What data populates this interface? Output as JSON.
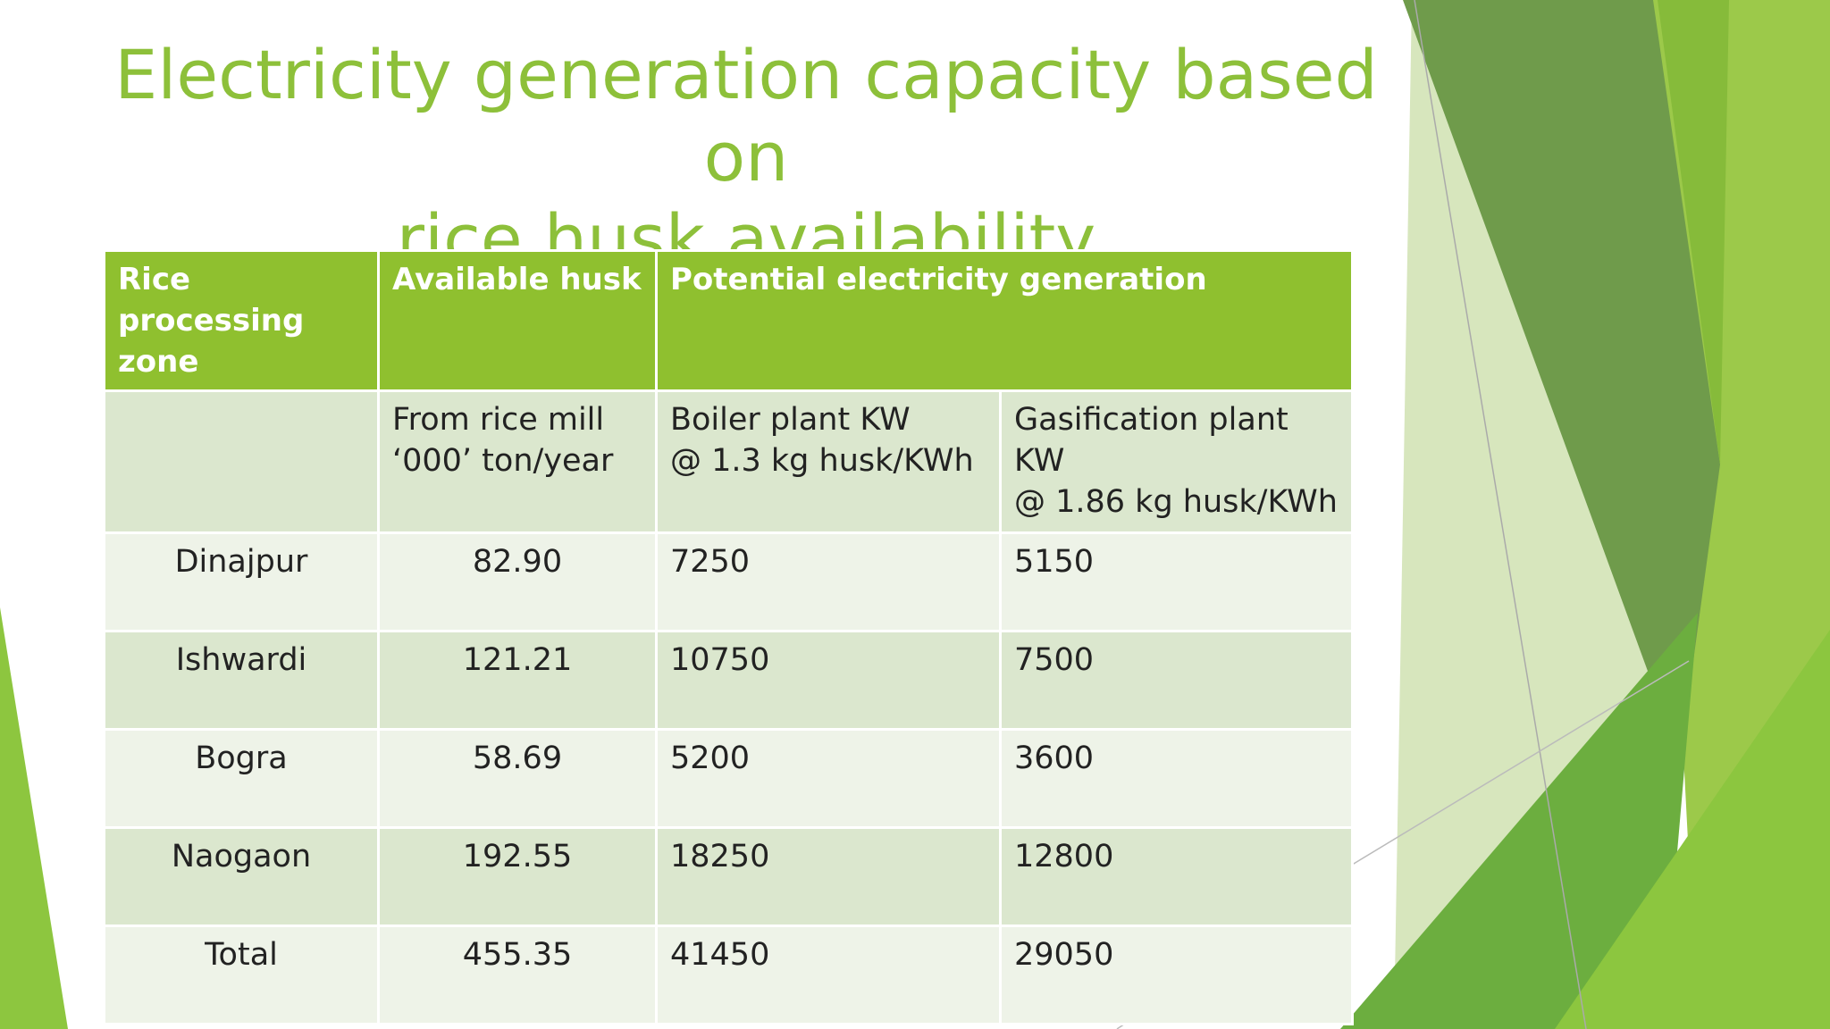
{
  "title": {
    "lines": [
      "Electricity generation capacity based on",
      "rice husk availability"
    ]
  },
  "table": {
    "header": [
      "Rice processing zone",
      "Available husk",
      "Potential electricity generation"
    ],
    "subheader": [
      [
        "From rice mill",
        "‘000’ ton/year"
      ],
      [
        "Boiler plant KW",
        "@ 1.3 kg husk/KWh"
      ],
      [
        "Gasification plant",
        "KW",
        "@ 1.86 kg husk/KWh"
      ]
    ],
    "rows": [
      [
        "Dinajpur",
        "82.90",
        "7250",
        "5150"
      ],
      [
        "Ishwardi",
        "121.21",
        "10750",
        "7500"
      ],
      [
        "Bogra",
        "58.69",
        "5200",
        "3600"
      ],
      [
        "Naogaon",
        "192.55",
        "18250",
        "12800"
      ],
      [
        "Total",
        "455.35",
        "41450",
        "29050"
      ]
    ]
  }
}
